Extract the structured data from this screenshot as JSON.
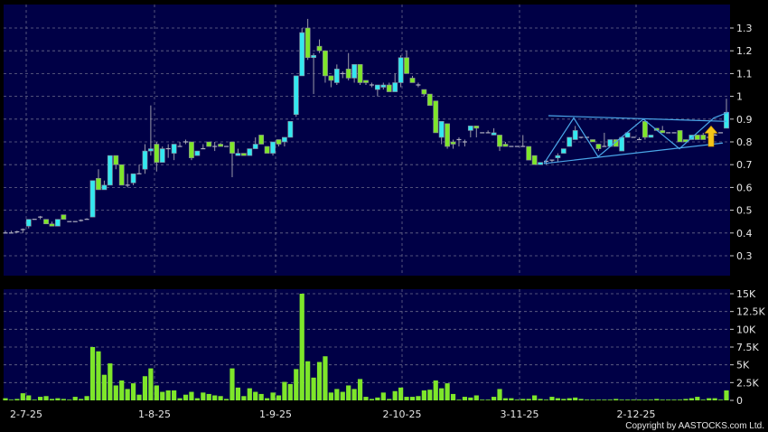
{
  "chart_data": {
    "type": "candlestick",
    "title": "",
    "copyright": "Copyright by AASTOCKS.com Ltd.",
    "colors": {
      "background": "#000000",
      "panel": "#000046",
      "grid": "#6a6a8a",
      "up": "#33e8f0",
      "down": "#7ee62a",
      "volume": "#7ee62a",
      "pattern": "#4aa6e8",
      "arrow": "#f5c518"
    },
    "price_axis": {
      "ylim": [
        0.2,
        1.4
      ],
      "ticks": [
        "1.3",
        "1.2",
        "1.1",
        "1",
        "0.9",
        "0.8",
        "0.7",
        "0.6",
        "0.5",
        "0.4",
        "0.3"
      ],
      "tick_values": [
        1.3,
        1.2,
        1.1,
        1.0,
        0.9,
        0.8,
        0.7,
        0.6,
        0.5,
        0.4,
        0.3
      ],
      "grid": true
    },
    "volume_axis": {
      "ylim": [
        0,
        15
      ],
      "ticks": [
        "15K",
        "12.5K",
        "10K",
        "7.5K",
        "5K",
        "2.5K",
        "0"
      ],
      "tick_values": [
        15,
        12.5,
        10,
        7.5,
        5,
        2.5,
        0
      ],
      "unit": "K",
      "grid": true
    },
    "x_ticks": [
      "2-7-25",
      "1-8-25",
      "1-9-25",
      "2-10-25",
      "3-11-25",
      "2-12-25"
    ],
    "candles_ohlc_volK": [
      [
        0.4,
        0.41,
        0.4,
        0.4,
        0.3
      ],
      [
        0.4,
        0.41,
        0.4,
        0.4,
        0.1
      ],
      [
        0.4,
        0.41,
        0.4,
        0.405,
        0.2
      ],
      [
        0.41,
        0.42,
        0.4,
        0.415,
        1.0
      ],
      [
        0.43,
        0.46,
        0.42,
        0.46,
        0.7
      ],
      [
        0.46,
        0.46,
        0.46,
        0.46,
        0.1
      ],
      [
        0.465,
        0.475,
        0.46,
        0.47,
        0.5
      ],
      [
        0.46,
        0.46,
        0.44,
        0.44,
        0.6
      ],
      [
        0.44,
        0.45,
        0.43,
        0.43,
        0.2
      ],
      [
        0.43,
        0.46,
        0.43,
        0.46,
        0.3
      ],
      [
        0.48,
        0.48,
        0.46,
        0.46,
        0.2
      ],
      [
        0.45,
        0.45,
        0.45,
        0.45,
        0.1
      ],
      [
        0.45,
        0.45,
        0.45,
        0.45,
        0.5
      ],
      [
        0.455,
        0.46,
        0.45,
        0.455,
        0.2
      ],
      [
        0.46,
        0.465,
        0.46,
        0.46,
        0.6
      ],
      [
        0.47,
        0.63,
        0.47,
        0.63,
        7.5
      ],
      [
        0.64,
        0.68,
        0.59,
        0.59,
        6.9
      ],
      [
        0.59,
        0.63,
        0.59,
        0.61,
        3.6
      ],
      [
        0.61,
        0.74,
        0.61,
        0.74,
        5.2
      ],
      [
        0.74,
        0.74,
        0.68,
        0.7,
        2.1
      ],
      [
        0.7,
        0.7,
        0.61,
        0.61,
        2.8
      ],
      [
        0.61,
        0.66,
        0.6,
        0.61,
        1.6
      ],
      [
        0.62,
        0.66,
        0.61,
        0.66,
        2.4
      ],
      [
        0.66,
        0.7,
        0.66,
        0.66,
        0.8
      ],
      [
        0.68,
        0.79,
        0.66,
        0.76,
        3.4
      ],
      [
        0.76,
        0.96,
        0.74,
        0.77,
        4.5
      ],
      [
        0.79,
        0.8,
        0.67,
        0.71,
        2.1
      ],
      [
        0.71,
        0.78,
        0.71,
        0.77,
        1.2
      ],
      [
        0.77,
        0.79,
        0.73,
        0.77,
        1.4
      ],
      [
        0.75,
        0.79,
        0.72,
        0.79,
        1.4
      ],
      [
        0.78,
        0.8,
        0.78,
        0.78,
        0.3
      ],
      [
        0.8,
        0.81,
        0.79,
        0.8,
        0.8
      ],
      [
        0.8,
        0.8,
        0.72,
        0.73,
        1.2
      ],
      [
        0.74,
        0.76,
        0.74,
        0.76,
        0.3
      ],
      [
        0.77,
        0.79,
        0.77,
        0.77,
        1.1
      ],
      [
        0.8,
        0.8,
        0.78,
        0.78,
        0.9
      ],
      [
        0.78,
        0.8,
        0.76,
        0.78,
        0.7
      ],
      [
        0.79,
        0.795,
        0.78,
        0.78,
        0.6
      ],
      [
        0.78,
        0.78,
        0.78,
        0.78,
        0.2
      ],
      [
        0.8,
        0.8,
        0.645,
        0.75,
        4.5
      ],
      [
        0.74,
        0.77,
        0.74,
        0.75,
        1.8
      ],
      [
        0.75,
        0.75,
        0.74,
        0.74,
        0.6
      ],
      [
        0.74,
        0.77,
        0.74,
        0.77,
        1.7
      ],
      [
        0.77,
        0.82,
        0.77,
        0.79,
        1.2
      ],
      [
        0.83,
        0.83,
        0.79,
        0.79,
        0.9
      ],
      [
        0.78,
        0.78,
        0.75,
        0.75,
        0.3
      ],
      [
        0.75,
        0.8,
        0.74,
        0.8,
        1.1
      ],
      [
        0.81,
        0.81,
        0.78,
        0.79,
        0.7
      ],
      [
        0.8,
        0.82,
        0.78,
        0.82,
        2.6
      ],
      [
        0.82,
        0.89,
        0.82,
        0.89,
        2.3
      ],
      [
        0.92,
        1.09,
        0.91,
        1.09,
        4.4
      ],
      [
        1.09,
        1.3,
        1.09,
        1.28,
        15
      ],
      [
        1.3,
        1.34,
        1.16,
        1.17,
        5.5
      ],
      [
        1.17,
        1.19,
        1.01,
        1.18,
        3.2
      ],
      [
        1.22,
        1.25,
        1.19,
        1.2,
        5.4
      ],
      [
        1.2,
        1.2,
        1.06,
        1.09,
        6.2
      ],
      [
        1.09,
        1.09,
        1.04,
        1.07,
        1.1
      ],
      [
        1.06,
        1.14,
        1.05,
        1.12,
        1.6
      ],
      [
        1.1,
        1.11,
        1.08,
        1.1,
        1.2
      ],
      [
        1.12,
        1.19,
        1.07,
        1.08,
        2.1
      ],
      [
        1.08,
        1.14,
        1.06,
        1.14,
        1.6
      ],
      [
        1.14,
        1.14,
        1.05,
        1.06,
        3.0
      ],
      [
        1.07,
        1.07,
        1.05,
        1.06,
        0.5
      ],
      [
        1.05,
        1.06,
        1.04,
        1.05,
        0.2
      ],
      [
        1.03,
        1.05,
        1.0,
        1.05,
        0.4
      ],
      [
        1.04,
        1.06,
        1.03,
        1.05,
        1.1
      ],
      [
        1.05,
        1.06,
        1.02,
        1.02,
        0.2
      ],
      [
        1.02,
        1.1,
        1.02,
        1.06,
        1.3
      ],
      [
        1.06,
        1.18,
        1.04,
        1.17,
        1.8
      ],
      [
        1.17,
        1.2,
        1.1,
        1.1,
        0.5
      ],
      [
        1.08,
        1.09,
        1.06,
        1.06,
        0.5
      ],
      [
        1.05,
        1.06,
        1.04,
        1.05,
        0.6
      ],
      [
        1.03,
        1.03,
        1.0,
        1.01,
        1.4
      ],
      [
        1.01,
        1.01,
        0.96,
        0.96,
        1.5
      ],
      [
        0.98,
        0.98,
        0.84,
        0.84,
        2.8
      ],
      [
        0.82,
        0.89,
        0.79,
        0.89,
        1.7
      ],
      [
        0.88,
        0.88,
        0.77,
        0.78,
        2.4
      ],
      [
        0.8,
        0.81,
        0.77,
        0.79,
        0.9
      ],
      [
        0.81,
        0.82,
        0.78,
        0.81,
        0.1
      ],
      [
        0.8,
        0.81,
        0.78,
        0.8,
        0.5
      ],
      [
        0.85,
        0.87,
        0.82,
        0.87,
        0.4
      ],
      [
        0.87,
        0.87,
        0.82,
        0.86,
        0.7
      ],
      [
        0.84,
        0.84,
        0.84,
        0.84,
        0.1
      ],
      [
        0.84,
        0.85,
        0.84,
        0.84,
        0.1
      ],
      [
        0.83,
        0.86,
        0.83,
        0.84,
        0.5
      ],
      [
        0.83,
        0.83,
        0.76,
        0.78,
        1.6
      ],
      [
        0.79,
        0.8,
        0.78,
        0.78,
        0.3
      ],
      [
        0.78,
        0.78,
        0.78,
        0.78,
        0.3
      ],
      [
        0.78,
        0.78,
        0.78,
        0.78,
        0.1
      ],
      [
        0.78,
        0.83,
        0.78,
        0.78,
        0.2
      ],
      [
        0.78,
        0.78,
        0.72,
        0.72,
        0.2
      ],
      [
        0.74,
        0.74,
        0.7,
        0.7,
        0.7
      ],
      [
        0.7,
        0.71,
        0.7,
        0.71,
        0.2
      ],
      [
        0.71,
        0.715,
        0.7,
        0.715,
        0.1
      ],
      [
        0.72,
        0.72,
        0.71,
        0.72,
        0.5
      ],
      [
        0.73,
        0.75,
        0.71,
        0.74,
        0.3
      ],
      [
        0.75,
        0.77,
        0.75,
        0.77,
        0.2
      ],
      [
        0.78,
        0.82,
        0.78,
        0.82,
        0.3
      ],
      [
        0.81,
        0.87,
        0.81,
        0.85,
        0.4
      ],
      [
        0.82,
        0.82,
        0.815,
        0.815,
        0.2
      ],
      [
        0.82,
        0.82,
        0.81,
        0.815,
        0.1
      ],
      [
        0.81,
        0.81,
        0.8,
        0.8,
        0.1
      ],
      [
        0.79,
        0.79,
        0.76,
        0.77,
        0.1
      ],
      [
        0.78,
        0.84,
        0.78,
        0.78,
        0.1
      ],
      [
        0.78,
        0.81,
        0.78,
        0.81,
        0.1
      ],
      [
        0.81,
        0.81,
        0.78,
        0.78,
        0.2
      ],
      [
        0.76,
        0.82,
        0.76,
        0.82,
        0.1
      ],
      [
        0.82,
        0.84,
        0.82,
        0.84,
        0.1
      ],
      [
        0.82,
        0.82,
        0.82,
        0.82,
        0.1
      ],
      [
        0.81,
        0.82,
        0.81,
        0.81,
        0.1
      ],
      [
        0.89,
        0.89,
        0.81,
        0.82,
        0.1
      ],
      [
        0.82,
        0.83,
        0.82,
        0.83,
        0.1
      ],
      [
        0.86,
        0.86,
        0.85,
        0.85,
        0.2
      ],
      [
        0.85,
        0.87,
        0.84,
        0.84,
        0.1
      ],
      [
        0.84,
        0.84,
        0.84,
        0.84,
        0.1
      ],
      [
        0.84,
        0.84,
        0.84,
        0.84,
        0.1
      ],
      [
        0.85,
        0.85,
        0.8,
        0.8,
        0.1
      ],
      [
        0.81,
        0.81,
        0.8,
        0.8,
        0.2
      ],
      [
        0.81,
        0.83,
        0.81,
        0.83,
        0.3
      ],
      [
        0.83,
        0.83,
        0.81,
        0.81,
        0.5
      ],
      [
        0.83,
        0.84,
        0.81,
        0.81,
        0.1
      ],
      [
        0.82,
        0.82,
        0.82,
        0.82,
        0.3
      ],
      [
        0.83,
        0.84,
        0.83,
        0.83,
        0.3
      ],
      [
        0.84,
        0.84,
        0.84,
        0.84,
        0.1
      ],
      [
        0.86,
        0.99,
        0.86,
        0.93,
        1.4
      ]
    ],
    "pattern": {
      "upper_line": [
        0.915,
        0.89
      ],
      "lower_line": [
        0.705,
        0.795
      ],
      "zigzag": [
        0.705,
        0.905,
        0.735,
        0.9,
        0.77,
        0.905,
        0.93
      ],
      "arrow": {
        "direction": "up",
        "from": 0.78,
        "to": 0.87
      }
    }
  }
}
